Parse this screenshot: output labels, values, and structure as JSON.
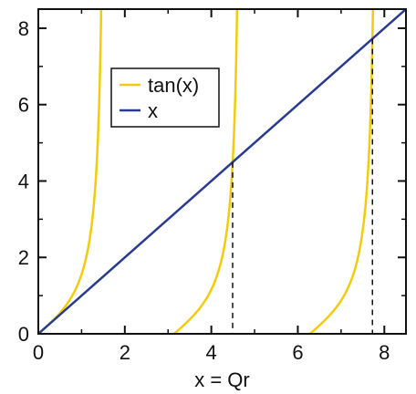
{
  "chart_data": {
    "type": "line",
    "xlabel": "x = Qr",
    "ylabel": "",
    "xlim": [
      0,
      8.5
    ],
    "ylim": [
      0,
      8.5
    ],
    "x_ticks": [
      0,
      2,
      4,
      6,
      8
    ],
    "y_ticks": [
      0,
      2,
      4,
      6,
      8
    ],
    "grid": false,
    "legend": {
      "placement": "upper-left-center"
    },
    "series": [
      {
        "name": "tan(x)",
        "color": "#f2cc0c",
        "function": "tan(x)"
      },
      {
        "name": "x",
        "color": "#2a3b8f",
        "function": "x"
      }
    ],
    "intersections": [
      {
        "x": 4.493,
        "y": 4.493
      },
      {
        "x": 7.725,
        "y": 7.725
      }
    ]
  }
}
